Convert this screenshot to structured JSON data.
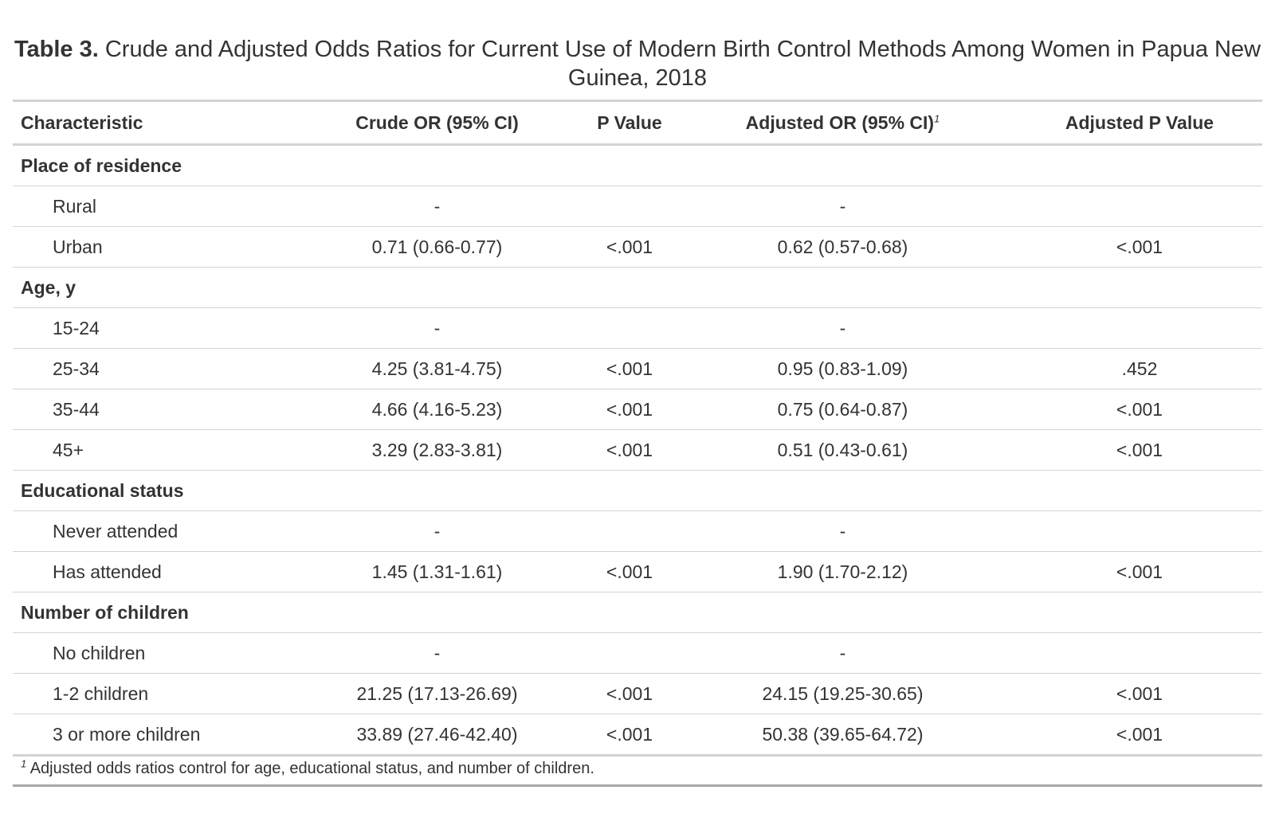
{
  "caption": {
    "label": "Table 3.",
    "text": " Crude and Adjusted Odds Ratios for Current Use of Modern Birth Control Methods Among Women in Papua New Guinea, 2018"
  },
  "headers": {
    "characteristic": "Characteristic",
    "crude_or": "Crude OR (95% CI)",
    "p_value": "P Value",
    "adjusted_or": "Adjusted OR (95% CI)",
    "adjusted_or_note": "1",
    "adjusted_p": "Adjusted P Value"
  },
  "groups": [
    {
      "label": "Place of residence",
      "rows": [
        {
          "label": "Rural",
          "crude": "-",
          "p": "",
          "adj": "-",
          "adj_p": ""
        },
        {
          "label": "Urban",
          "crude": "0.71 (0.66-0.77)",
          "p": "<.001",
          "adj": "0.62 (0.57-0.68)",
          "adj_p": "<.001"
        }
      ]
    },
    {
      "label": "Age, y",
      "rows": [
        {
          "label": "15-24",
          "crude": "-",
          "p": "",
          "adj": "-",
          "adj_p": ""
        },
        {
          "label": "25-34",
          "crude": "4.25 (3.81-4.75)",
          "p": "<.001",
          "adj": "0.95 (0.83-1.09)",
          "adj_p": ".452"
        },
        {
          "label": "35-44",
          "crude": "4.66 (4.16-5.23)",
          "p": "<.001",
          "adj": "0.75 (0.64-0.87)",
          "adj_p": "<.001"
        },
        {
          "label": "45+",
          "crude": "3.29 (2.83-3.81)",
          "p": "<.001",
          "adj": "0.51 (0.43-0.61)",
          "adj_p": "<.001"
        }
      ]
    },
    {
      "label": "Educational status",
      "rows": [
        {
          "label": "Never attended",
          "crude": "-",
          "p": "",
          "adj": "-",
          "adj_p": ""
        },
        {
          "label": "Has attended",
          "crude": "1.45 (1.31-1.61)",
          "p": "<.001",
          "adj": "1.90 (1.70-2.12)",
          "adj_p": "<.001"
        }
      ]
    },
    {
      "label": "Number of children",
      "rows": [
        {
          "label": "No children",
          "crude": "-",
          "p": "",
          "adj": "-",
          "adj_p": ""
        },
        {
          "label": "1-2 children",
          "crude": "21.25 (17.13-26.69)",
          "p": "<.001",
          "adj": "24.15 (19.25-30.65)",
          "adj_p": "<.001"
        },
        {
          "label": "3 or more children",
          "crude": "33.89 (27.46-42.40)",
          "p": "<.001",
          "adj": "50.38 (39.65-64.72)",
          "adj_p": "<.001"
        }
      ]
    }
  ],
  "footnote": {
    "marker": "1",
    "text": " Adjusted odds ratios control for age, educational status, and number of children."
  }
}
